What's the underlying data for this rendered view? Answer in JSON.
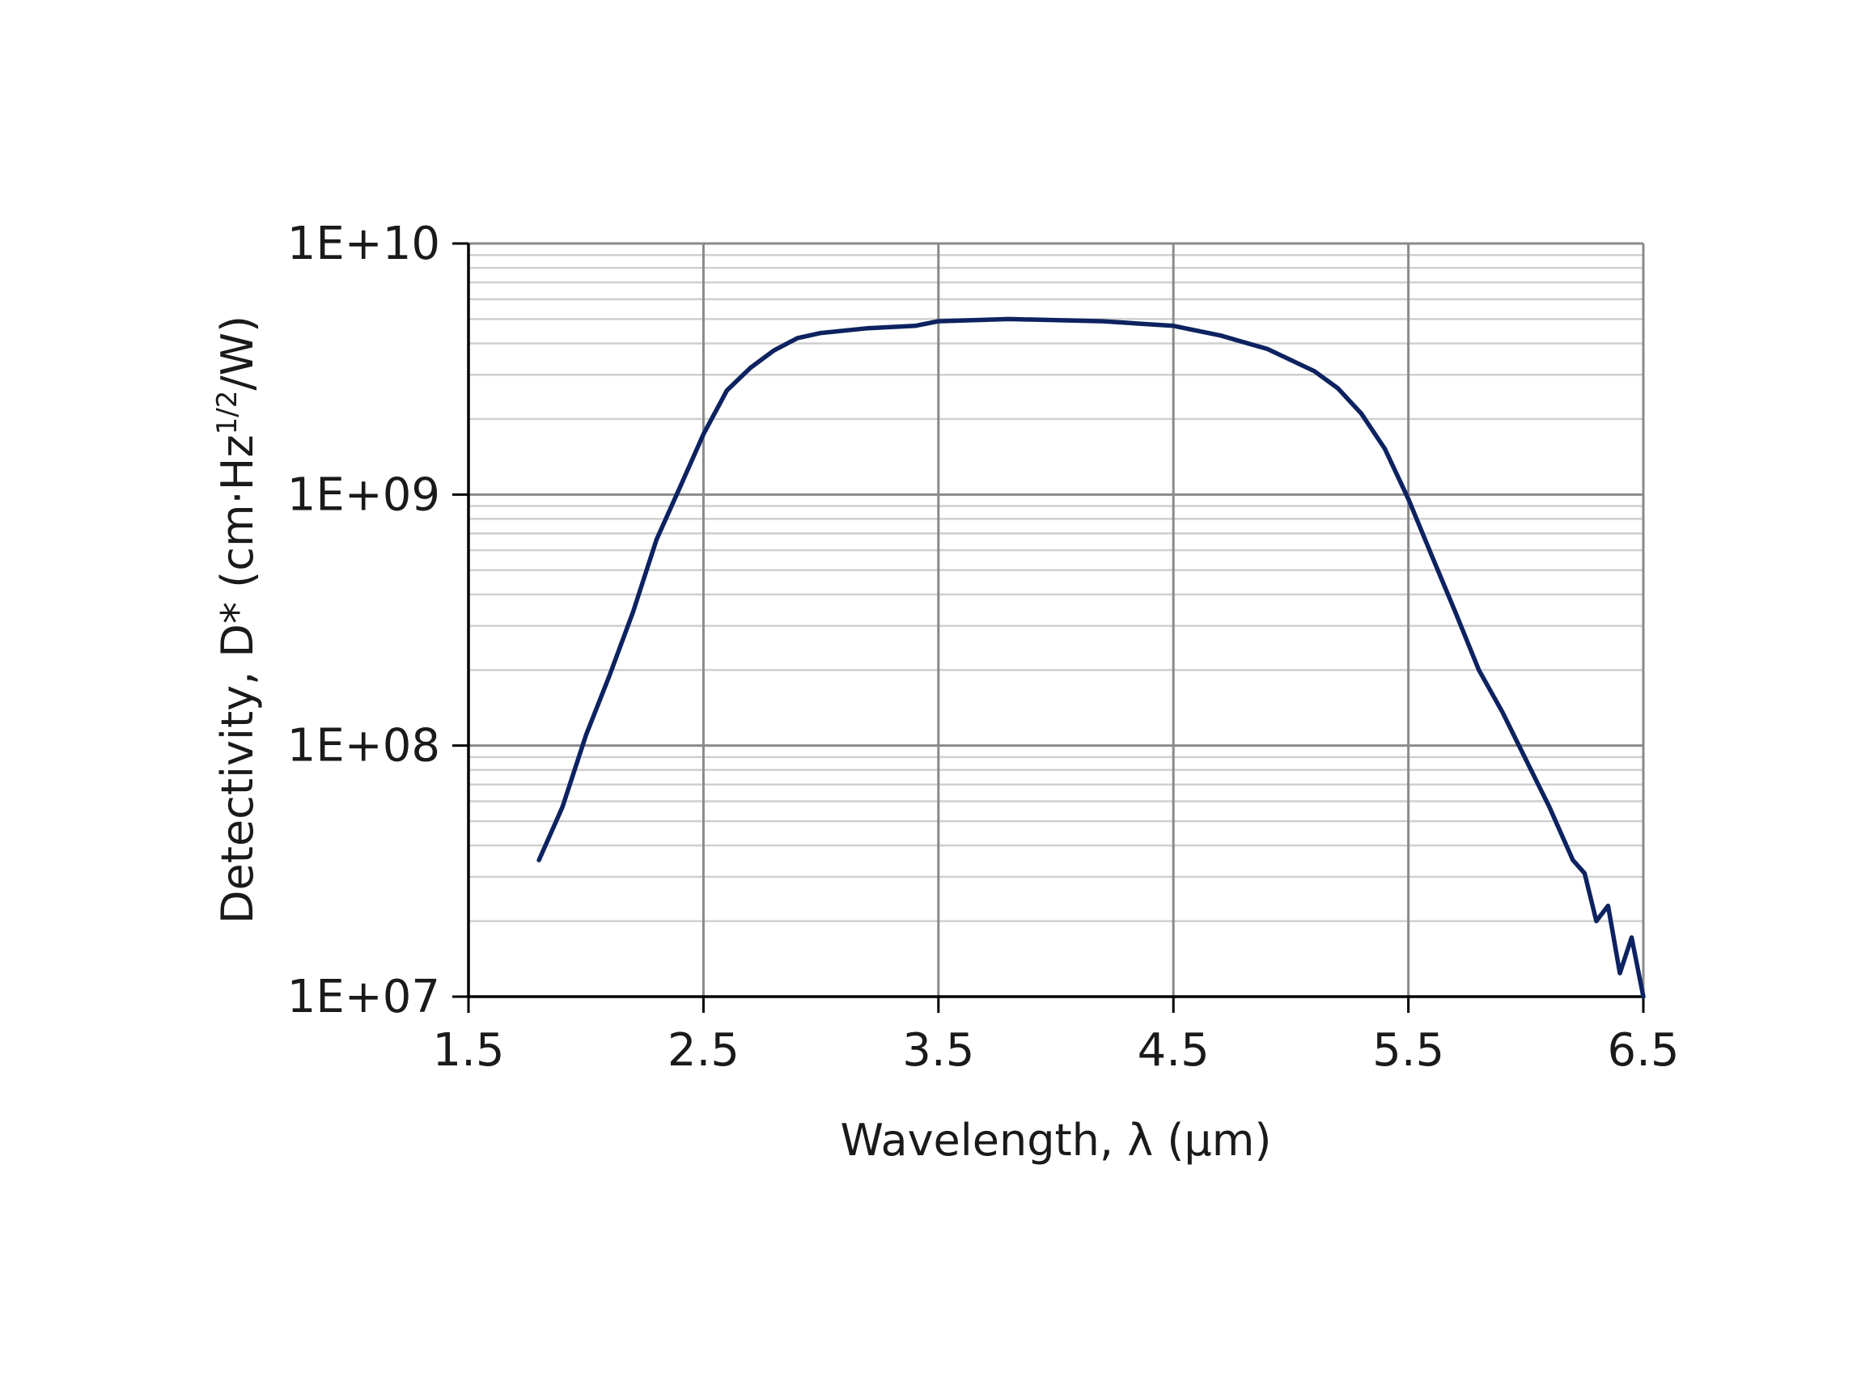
{
  "chart_data": {
    "type": "line",
    "x_label": "Wavelength, λ (µm)",
    "y_label_parts": [
      "Detectivity, D* (cm·Hz",
      "1/2",
      "/W)"
    ],
    "xlim": [
      1.5,
      6.5
    ],
    "xticks": [
      1.5,
      2.5,
      3.5,
      4.5,
      5.5,
      6.5
    ],
    "ylim": [
      10000000,
      10000000000
    ],
    "yscale": "log",
    "yticks": [
      {
        "value": 10000000,
        "label": "1E+07"
      },
      {
        "value": 100000000,
        "label": "1E+08"
      },
      {
        "value": 1000000000,
        "label": "1E+09"
      },
      {
        "value": 10000000000,
        "label": "1E+10"
      }
    ],
    "grid": true,
    "minor_grid": true,
    "series": [
      {
        "color": "#0d2260",
        "x": [
          1.8,
          1.9,
          2.0,
          2.1,
          2.2,
          2.3,
          2.4,
          2.5,
          2.6,
          2.7,
          2.8,
          2.9,
          3.0,
          3.2,
          3.4,
          3.5,
          3.8,
          4.2,
          4.5,
          4.7,
          4.9,
          5.1,
          5.2,
          5.3,
          5.4,
          5.5,
          5.6,
          5.7,
          5.8,
          5.9,
          6.0,
          6.1,
          6.2,
          6.25,
          6.3,
          6.35,
          6.4,
          6.45,
          6.5
        ],
        "values": [
          35000000,
          57000000,
          110000000,
          190000000,
          340000000,
          660000000,
          1070000000,
          1740000000,
          2600000000,
          3200000000,
          3750000000,
          4200000000,
          4400000000,
          4600000000,
          4700000000,
          4900000000,
          5000000000,
          4900000000,
          4700000000,
          4300000000,
          3800000000,
          3100000000,
          2650000000,
          2100000000,
          1520000000,
          960000000,
          570000000,
          340000000,
          200000000,
          136000000,
          88000000,
          57000000,
          35000000,
          31000000,
          20000000,
          23000000,
          12400000,
          17200000,
          10000000
        ]
      }
    ]
  }
}
